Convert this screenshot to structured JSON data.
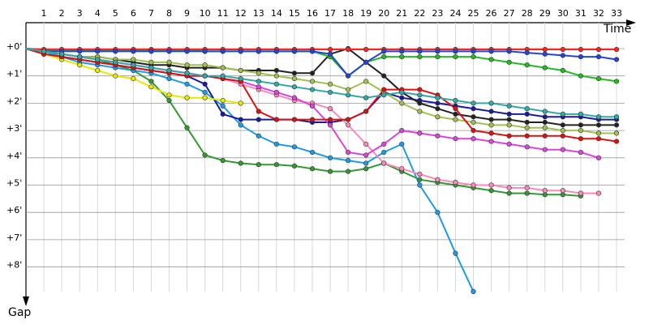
{
  "chart_data": {
    "type": "line",
    "x_label": "Time",
    "y_label": "Gap",
    "categories": [
      null,
      "1",
      "2",
      "3",
      "4",
      "5",
      "6",
      "7",
      "8",
      "9",
      "10",
      "11",
      "12",
      "13",
      "14",
      "15",
      "16",
      "17",
      "18",
      "19",
      "20",
      "21",
      "22",
      "23",
      "24",
      "25",
      "26",
      "27",
      "28",
      "29",
      "30",
      "31",
      "32",
      "33"
    ],
    "ylim": [
      -0.95,
      9.2
    ],
    "y_reversed": true,
    "grid": true,
    "yticks": [
      {
        "value": 0,
        "label": "+0'"
      },
      {
        "value": 1,
        "label": "+1'"
      },
      {
        "value": 2,
        "label": "+2'"
      },
      {
        "value": 3,
        "label": "+3'"
      },
      {
        "value": 4,
        "label": "+4'"
      },
      {
        "value": 5,
        "label": "+5'"
      },
      {
        "value": 6,
        "label": "+6'"
      },
      {
        "value": 7,
        "label": "+7'"
      },
      {
        "value": 8,
        "label": "+8'"
      }
    ],
    "series": [
      {
        "color": "#339933",
        "values": [
          0,
          0.1,
          0.2,
          0.3,
          0.4,
          0.6,
          0.8,
          1.2,
          1.9,
          2.9,
          3.9,
          4.1,
          4.2,
          4.25,
          4.25,
          4.3,
          4.4,
          4.5,
          4.5,
          4.4,
          4.2,
          4.5,
          4.8,
          4.9,
          5.0,
          5.1,
          5.2,
          5.3,
          5.3,
          5.35,
          5.35,
          5.4,
          null,
          null
        ]
      },
      {
        "color": "#1e9be6",
        "values": [
          0,
          0.1,
          0.3,
          0.5,
          0.6,
          0.7,
          0.8,
          0.9,
          1.1,
          1.3,
          1.6,
          2.1,
          2.8,
          3.2,
          3.5,
          3.6,
          3.8,
          4.0,
          4.1,
          4.2,
          3.8,
          3.5,
          5.0,
          6.0,
          7.5,
          8.9,
          null,
          null,
          null,
          null,
          null,
          null,
          null,
          null
        ]
      },
      {
        "color": "#1a1aa0",
        "values": [
          0,
          0.2,
          0.3,
          0.4,
          0.5,
          0.6,
          0.7,
          0.8,
          0.9,
          1.0,
          1.3,
          2.4,
          2.6,
          2.6,
          2.6,
          2.6,
          2.7,
          2.7,
          2.6,
          2.3,
          1.6,
          1.8,
          1.9,
          2.0,
          2.1,
          2.2,
          2.3,
          2.4,
          2.4,
          2.5,
          2.5,
          2.5,
          2.6,
          2.6
        ]
      },
      {
        "color": "#ff88bb",
        "values": [
          0,
          0.1,
          0.2,
          0.3,
          0.4,
          0.5,
          0.6,
          0.7,
          0.8,
          0.9,
          1.0,
          1.1,
          1.3,
          1.5,
          1.7,
          1.9,
          2.0,
          2.2,
          2.8,
          3.5,
          4.2,
          4.4,
          4.6,
          4.8,
          4.9,
          5.0,
          5.0,
          5.1,
          5.1,
          5.2,
          5.2,
          5.3,
          5.3,
          null
        ]
      },
      {
        "color": "#e8e800",
        "values": [
          0,
          0.2,
          0.4,
          0.6,
          0.8,
          1.0,
          1.1,
          1.4,
          1.7,
          1.8,
          1.8,
          1.9,
          2.0,
          null,
          null,
          null,
          null,
          null,
          null,
          null,
          null,
          null,
          null,
          null,
          null,
          null,
          null,
          null,
          null,
          null,
          null,
          null,
          null,
          null
        ]
      },
      {
        "color": "#dd44dd",
        "values": [
          0,
          0.1,
          0.2,
          0.3,
          0.4,
          0.5,
          0.6,
          0.7,
          0.8,
          0.9,
          1.0,
          1.1,
          1.2,
          1.4,
          1.6,
          1.8,
          2.1,
          2.8,
          3.8,
          3.9,
          3.5,
          3.0,
          3.1,
          3.2,
          3.3,
          3.3,
          3.4,
          3.5,
          3.6,
          3.7,
          3.7,
          3.8,
          4.0,
          null
        ]
      },
      {
        "color": "#222222",
        "values": [
          0,
          0.1,
          0.2,
          0.3,
          0.3,
          0.4,
          0.5,
          0.6,
          0.6,
          0.7,
          0.7,
          0.7,
          0.8,
          0.8,
          0.8,
          0.9,
          0.9,
          0.2,
          0.0,
          0.5,
          1.0,
          1.6,
          2.0,
          2.2,
          2.4,
          2.5,
          2.6,
          2.6,
          2.7,
          2.7,
          2.8,
          2.8,
          2.8,
          2.8
        ]
      },
      {
        "color": "#a0c050",
        "values": [
          0,
          0.1,
          0.2,
          0.3,
          0.3,
          0.4,
          0.4,
          0.5,
          0.5,
          0.6,
          0.6,
          0.7,
          0.8,
          0.9,
          1.0,
          1.1,
          1.2,
          1.3,
          1.5,
          1.2,
          1.6,
          2.0,
          2.3,
          2.5,
          2.6,
          2.7,
          2.8,
          2.8,
          2.9,
          2.9,
          3.0,
          3.0,
          3.1,
          3.1
        ]
      },
      {
        "color": "#22bb22",
        "values": [
          0,
          0.05,
          0.05,
          0.05,
          0.05,
          0.05,
          0.05,
          0.05,
          0.05,
          0.05,
          0.1,
          0.1,
          0.1,
          0.1,
          0.1,
          0.1,
          0.1,
          0.3,
          1.0,
          0.5,
          0.3,
          0.3,
          0.3,
          0.3,
          0.3,
          0.3,
          0.4,
          0.5,
          0.6,
          0.7,
          0.8,
          1.0,
          1.1,
          1.2
        ]
      },
      {
        "color": "#dd1111",
        "values": [
          0,
          0.2,
          0.3,
          0.4,
          0.5,
          0.6,
          0.7,
          0.8,
          0.9,
          1,
          1,
          1.1,
          1.2,
          2.3,
          2.6,
          2.6,
          2.6,
          2.6,
          2.6,
          2.3,
          1.5,
          1.5,
          1.5,
          1.7,
          2.2,
          3,
          3.1,
          3.2,
          3.2,
          3.2,
          3.2,
          3.3,
          3.3,
          3.4
        ]
      },
      {
        "color": "#ff2222",
        "values": [
          0,
          0.03,
          0.03,
          0.03,
          0.03,
          0.03,
          0.03,
          0.03,
          0.03,
          0.03,
          0.03,
          0.03,
          0.03,
          0.03,
          0.03,
          0.03,
          0.03,
          0.03,
          0.03,
          0.03,
          0.03,
          0.03,
          0.03,
          0.03,
          0.03,
          0.03,
          0.03,
          0.03,
          0.03,
          0.03,
          0.03,
          0.03,
          0.03,
          0.03
        ]
      },
      {
        "color": "#2244dd",
        "values": [
          0,
          0.1,
          0.1,
          0.1,
          0.1,
          0.1,
          0.1,
          0.1,
          0.1,
          0.1,
          0.1,
          0.1,
          0.1,
          0.1,
          0.1,
          0.1,
          0.1,
          0.2,
          1.0,
          0.5,
          0.1,
          0.1,
          0.1,
          0.1,
          0.1,
          0.1,
          0.1,
          0.1,
          0.15,
          0.2,
          0.25,
          0.3,
          0.3,
          0.4
        ]
      },
      {
        "color": "#33aaaa",
        "values": [
          0,
          0.1,
          0.2,
          0.3,
          0.4,
          0.5,
          0.6,
          0.7,
          0.8,
          0.9,
          1.0,
          1.0,
          1.1,
          1.2,
          1.3,
          1.4,
          1.5,
          1.6,
          1.7,
          1.8,
          1.7,
          1.6,
          1.7,
          1.8,
          1.9,
          2.0,
          2.0,
          2.1,
          2.2,
          2.3,
          2.4,
          2.4,
          2.5,
          2.5
        ]
      }
    ]
  }
}
